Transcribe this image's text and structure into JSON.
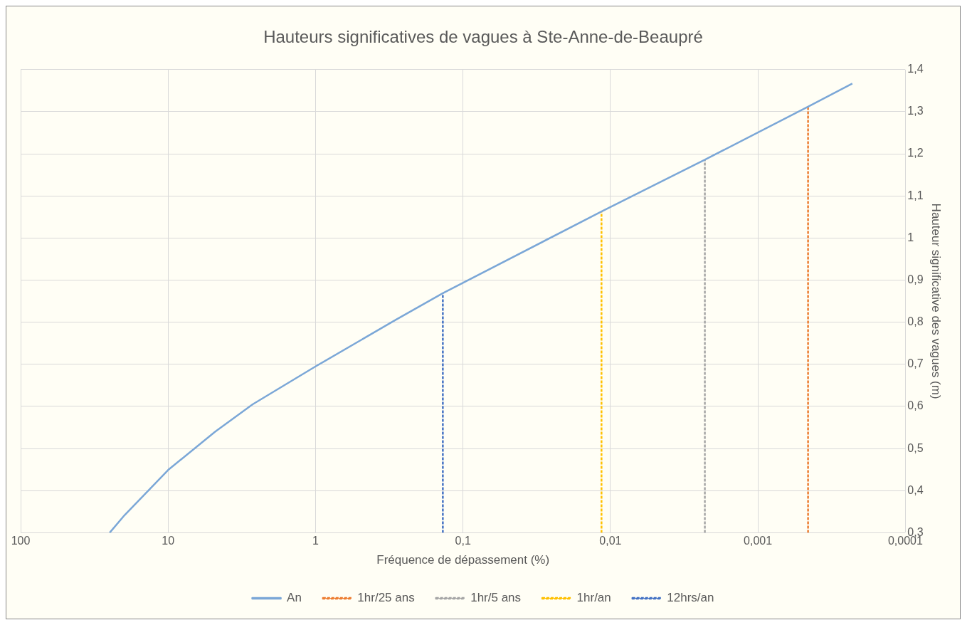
{
  "chart_data": {
    "type": "line",
    "title": "Hauteurs significatives de vagues à Ste-Anne-de-Beaupré",
    "xlabel": "Fréquence de dépassement (%)",
    "ylabel": "Hauteur significative des vagues (m)",
    "log": "x",
    "grid": true,
    "legend": "bottom",
    "marker": "none",
    "xlim": [
      100,
      0.0001
    ],
    "xticks": [
      100,
      10,
      1,
      {
        "value": 0.1,
        "label": "0,1"
      },
      {
        "value": 0.01,
        "label": "0,01"
      },
      {
        "value": 0.001,
        "label": "0,001"
      },
      {
        "value": 0.0001,
        "label": "0,0001"
      }
    ],
    "ylim": [
      0.3,
      1.4
    ],
    "yticks": [
      {
        "value": 0.3,
        "label": "0,3"
      },
      {
        "value": 0.4,
        "label": "0,4"
      },
      {
        "value": 0.5,
        "label": "0,5"
      },
      {
        "value": 0.6,
        "label": "0,6"
      },
      {
        "value": 0.7,
        "label": "0,7"
      },
      {
        "value": 0.8,
        "label": "0,8"
      },
      {
        "value": 0.9,
        "label": "0,9"
      },
      1,
      {
        "value": 1.1,
        "label": "1,1"
      },
      {
        "value": 1.2,
        "label": "1,2"
      },
      {
        "value": 1.3,
        "label": "1,3"
      },
      {
        "value": 1.4,
        "label": "1,4"
      }
    ],
    "series": [
      {
        "name": "An",
        "color": "#7ba7d7",
        "line_style": "solid",
        "x": [
          24.9,
          19.7,
          10,
          4.8,
          2.67,
          1,
          0.285,
          0.137,
          0.0115,
          0.00229,
          0.000457,
          0.000229
        ],
        "values": [
          0.3,
          0.342,
          0.449,
          0.54,
          0.605,
          0.695,
          0.806,
          0.869,
          1.063,
          1.186,
          1.312,
          1.367
        ]
      },
      {
        "name": "1hr/25 ans",
        "color": "#ed7d31",
        "line_style": "dashed",
        "x": [
          0.000457,
          0.000457
        ],
        "values": [
          0.3,
          1.312
        ]
      },
      {
        "name": "1hr/5 ans",
        "color": "#a5a5a5",
        "line_style": "dashed",
        "x": [
          0.00229,
          0.00229
        ],
        "values": [
          0.3,
          1.186
        ]
      },
      {
        "name": "1hr/an",
        "color": "#ffc000",
        "line_style": "dashed",
        "x": [
          0.0115,
          0.0115
        ],
        "values": [
          0.3,
          1.063
        ]
      },
      {
        "name": "12hrs/an",
        "color": "#4472c4",
        "line_style": "dashed",
        "x": [
          0.137,
          0.137
        ],
        "values": [
          0.3,
          0.869
        ]
      }
    ]
  }
}
